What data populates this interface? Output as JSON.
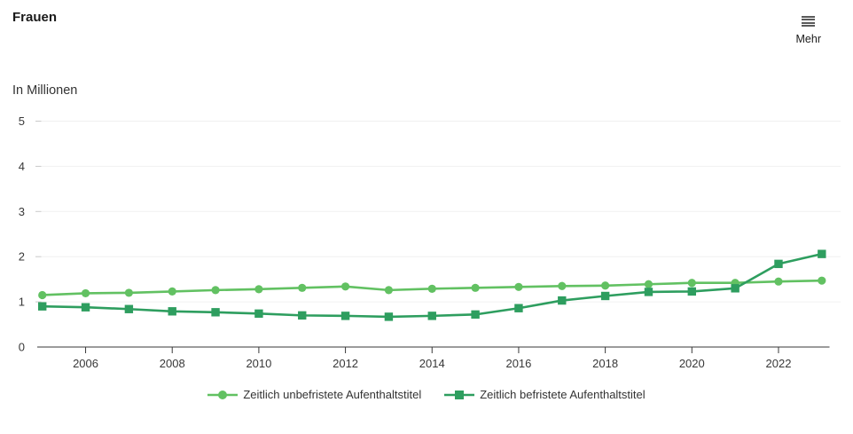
{
  "header": {
    "title": "Frauen",
    "menu_label": "Mehr"
  },
  "subtitle": "In Millionen",
  "colors": {
    "unbefristet": "#62c162",
    "befristet": "#2e9e5f",
    "grid": "#f0f0f0",
    "grid_tick": "#c9c9c9",
    "axis": "#383838",
    "label_text": "#383838"
  },
  "chart_data": {
    "type": "line",
    "title": "Frauen",
    "subtitle": "In Millionen",
    "x": [
      2005,
      2006,
      2007,
      2008,
      2009,
      2010,
      2011,
      2012,
      2013,
      2014,
      2015,
      2016,
      2017,
      2018,
      2019,
      2020,
      2021,
      2022,
      2023
    ],
    "series": [
      {
        "name": "Zeitlich unbefristete Aufenthaltstitel",
        "marker": "circle",
        "color": "#62c162",
        "values": [
          1.15,
          1.19,
          1.2,
          1.23,
          1.26,
          1.28,
          1.31,
          1.34,
          1.26,
          1.29,
          1.31,
          1.33,
          1.35,
          1.36,
          1.39,
          1.42,
          1.42,
          1.45,
          1.47
        ]
      },
      {
        "name": "Zeitlich befristete Aufenthaltstitel",
        "marker": "square",
        "color": "#2e9e5f",
        "values": [
          0.9,
          0.88,
          0.84,
          0.79,
          0.77,
          0.74,
          0.7,
          0.69,
          0.67,
          0.69,
          0.72,
          0.86,
          1.03,
          1.13,
          1.22,
          1.23,
          1.3,
          1.84,
          2.06
        ]
      }
    ],
    "ylim": [
      0,
      5
    ],
    "yticks": [
      0,
      1,
      2,
      3,
      4,
      5
    ],
    "xticks": [
      2006,
      2008,
      2010,
      2012,
      2014,
      2016,
      2018,
      2020,
      2022
    ],
    "grid": "horizontal",
    "legend_position": "bottom"
  }
}
